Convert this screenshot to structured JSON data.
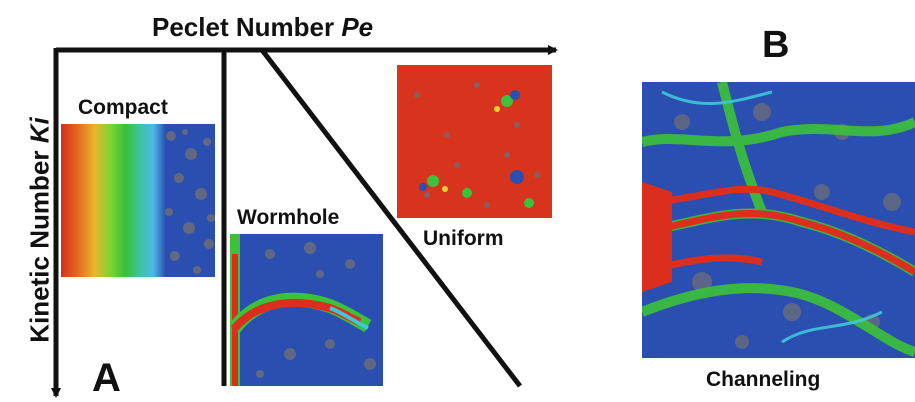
{
  "diagram": {
    "x_axis_label": "Peclet Number",
    "x_axis_symbol": "Pe",
    "y_axis_label": "Kinetic Number",
    "y_axis_symbol": "Ki",
    "panel_a_letter": "A",
    "panel_b_letter": "B",
    "regimes": {
      "compact": "Compact",
      "wormhole": "Wormhole",
      "uniform": "Uniform",
      "channeling": "Channeling"
    }
  },
  "colors": {
    "grain_blue": "#2a4fb0",
    "grain_gray": "#6d6d78",
    "reacted_red": "#dc2e1c",
    "front_yellow": "#e8d22a",
    "front_green": "#3cc23a",
    "front_cyan": "#3fc6d8",
    "line": "#111111"
  }
}
